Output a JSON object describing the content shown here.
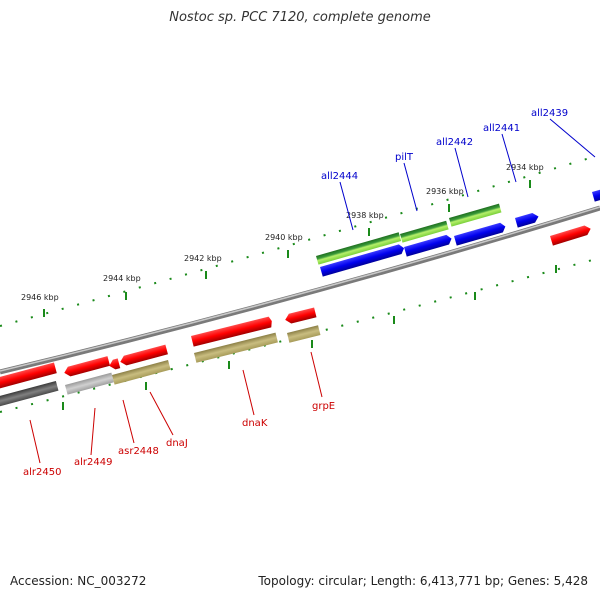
{
  "title": "Nostoc sp. PCC 7120, complete genome",
  "footer": {
    "accession": "Accession: NC_003272",
    "stats": "Topology: circular; Length: 6,413,771 bp; Genes: 5,428"
  },
  "ticks": [
    "2946 kbp",
    "2944 kbp",
    "2942 kbp",
    "2940 kbp",
    "2938 kbp",
    "2936 kbp",
    "2934 kbp"
  ],
  "genes_top": [
    "all2444",
    "pilT",
    "all2442",
    "all2441",
    "all2439"
  ],
  "genes_bottom": [
    "alr2450",
    "alr2449",
    "asr2448",
    "dnaJ",
    "dnaK",
    "grpE"
  ],
  "colors": {
    "forward_cds": "#e00000",
    "reverse_cds": "#0000dd",
    "feature_green": "#2e8b2e",
    "feature_olive": "#b8ac6a",
    "feature_gray": "#8a8a8a",
    "backbone": "#888888",
    "tick_green": "#1a8a1a"
  }
}
